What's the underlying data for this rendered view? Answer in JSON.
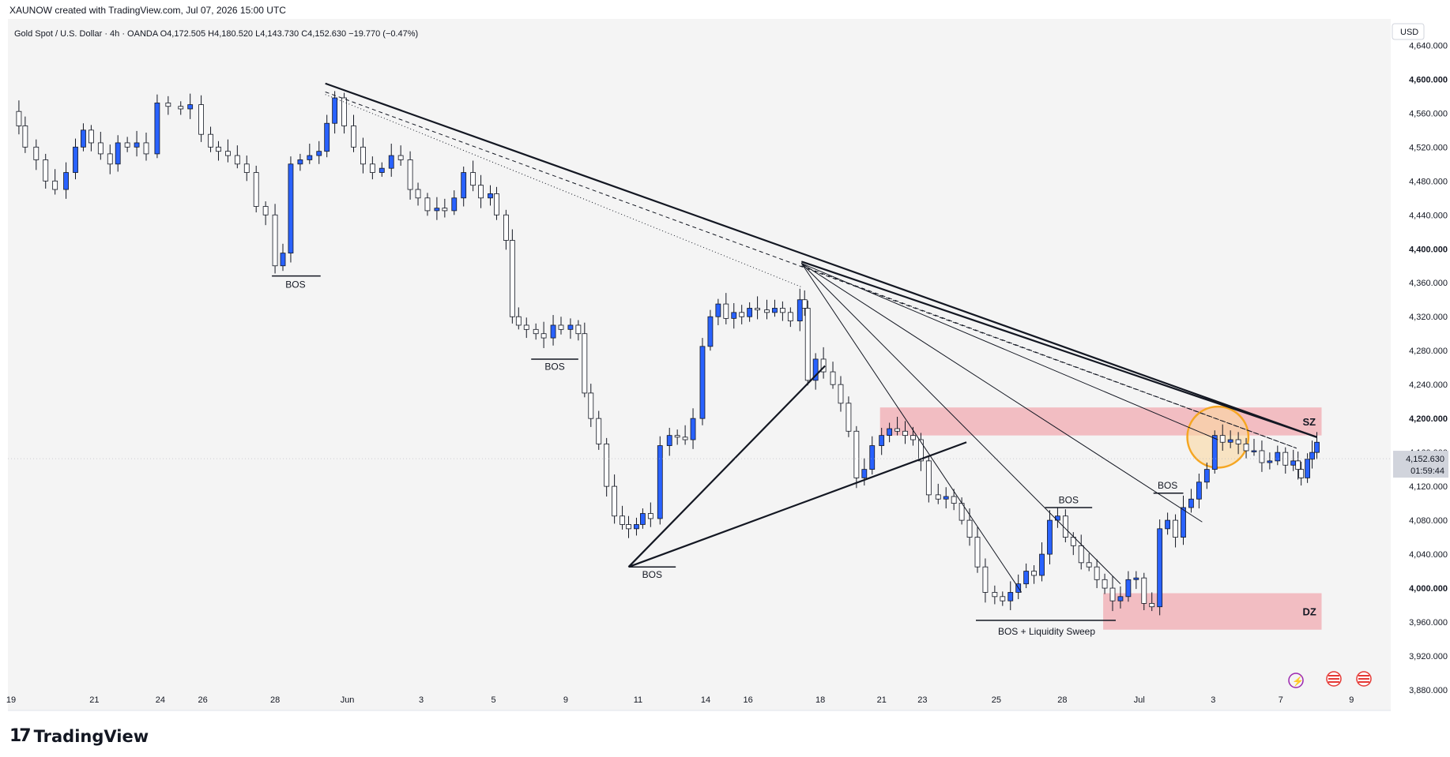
{
  "header": {
    "credit": "XAUNOW created with TradingView.com, Jul 07, 2026 15:00 UTC"
  },
  "footer": {
    "brand": "TradingView"
  },
  "chart_data": {
    "type": "candlestick",
    "symbol_line": "Gold Spot / U.S. Dollar · 4h · OANDA  O4,172.505  H4,180.520  L4,143.730  C4,152.630  −19.770 (−0.47%)",
    "currency": "USD",
    "open": 4172.505,
    "high": 4180.52,
    "low": 4143.73,
    "close": 4152.63,
    "change": -19.77,
    "change_pct": -0.47,
    "last_price_label": "4,152.630",
    "countdown": "01:59:44",
    "ylim": [
      3880,
      4645
    ],
    "y_ticks": [
      "4,640.000",
      "4,600.000",
      "4,560.000",
      "4,520.000",
      "4,480.000",
      "4,440.000",
      "4,400.000",
      "4,360.000",
      "4,320.000",
      "4,280.000",
      "4,240.000",
      "4,200.000",
      "4,160.000",
      "4,120.000",
      "4,080.000",
      "4,040.000",
      "4,000.000",
      "3,960.000",
      "3,920.000",
      "3,880.000"
    ],
    "y_tick_values": [
      4640,
      4600,
      4560,
      4520,
      4480,
      4440,
      4400,
      4360,
      4320,
      4280,
      4240,
      4200,
      4160,
      4120,
      4080,
      4040,
      4000,
      3960,
      3920,
      3880
    ],
    "x_range": [
      0,
      1760
    ],
    "x_ticks": [
      {
        "label": "19",
        "x": 0
      },
      {
        "label": "21",
        "x": 106
      },
      {
        "label": "24",
        "x": 190
      },
      {
        "label": "26",
        "x": 244
      },
      {
        "label": "28",
        "x": 336
      },
      {
        "label": "Jun",
        "x": 428
      },
      {
        "label": "3",
        "x": 522
      },
      {
        "label": "5",
        "x": 614
      },
      {
        "label": "9",
        "x": 706
      },
      {
        "label": "11",
        "x": 798
      },
      {
        "label": "14",
        "x": 884
      },
      {
        "label": "16",
        "x": 938
      },
      {
        "label": "18",
        "x": 1030
      },
      {
        "label": "21",
        "x": 1108
      },
      {
        "label": "23",
        "x": 1160
      },
      {
        "label": "25",
        "x": 1254
      },
      {
        "label": "28",
        "x": 1338
      },
      {
        "label": "Jul",
        "x": 1436
      },
      {
        "label": "3",
        "x": 1530
      },
      {
        "label": "7",
        "x": 1616
      },
      {
        "label": "9",
        "x": 1706
      }
    ],
    "price_path": [
      [
        0,
        4562
      ],
      [
        14,
        4545
      ],
      [
        22,
        4520
      ],
      [
        36,
        4505
      ],
      [
        48,
        4480
      ],
      [
        60,
        4470
      ],
      [
        74,
        4490
      ],
      [
        86,
        4520
      ],
      [
        96,
        4540
      ],
      [
        106,
        4525
      ],
      [
        118,
        4512
      ],
      [
        130,
        4500
      ],
      [
        140,
        4525
      ],
      [
        152,
        4520
      ],
      [
        164,
        4525
      ],
      [
        176,
        4512
      ],
      [
        190,
        4572
      ],
      [
        204,
        4568
      ],
      [
        220,
        4565
      ],
      [
        232,
        4570
      ],
      [
        246,
        4535
      ],
      [
        258,
        4520
      ],
      [
        268,
        4515
      ],
      [
        280,
        4510
      ],
      [
        292,
        4500
      ],
      [
        304,
        4490
      ],
      [
        316,
        4450
      ],
      [
        328,
        4440
      ],
      [
        340,
        4380
      ],
      [
        350,
        4395
      ],
      [
        360,
        4500
      ],
      [
        372,
        4505
      ],
      [
        384,
        4510
      ],
      [
        396,
        4515
      ],
      [
        406,
        4548
      ],
      [
        416,
        4578
      ],
      [
        428,
        4545
      ],
      [
        440,
        4520
      ],
      [
        452,
        4500
      ],
      [
        464,
        4490
      ],
      [
        476,
        4495
      ],
      [
        488,
        4510
      ],
      [
        500,
        4505
      ],
      [
        512,
        4470
      ],
      [
        522,
        4460
      ],
      [
        534,
        4445
      ],
      [
        546,
        4448
      ],
      [
        556,
        4445
      ],
      [
        568,
        4460
      ],
      [
        580,
        4490
      ],
      [
        592,
        4475
      ],
      [
        602,
        4460
      ],
      [
        614,
        4465
      ],
      [
        622,
        4440
      ],
      [
        634,
        4410
      ],
      [
        642,
        4320
      ],
      [
        650,
        4310
      ],
      [
        660,
        4305
      ],
      [
        672,
        4300
      ],
      [
        682,
        4295
      ],
      [
        694,
        4310
      ],
      [
        704,
        4305
      ],
      [
        716,
        4310
      ],
      [
        726,
        4300
      ],
      [
        734,
        4230
      ],
      [
        742,
        4200
      ],
      [
        752,
        4170
      ],
      [
        762,
        4120
      ],
      [
        772,
        4085
      ],
      [
        782,
        4075
      ],
      [
        790,
        4070
      ],
      [
        800,
        4075
      ],
      [
        808,
        4088
      ],
      [
        818,
        4082
      ],
      [
        830,
        4168
      ],
      [
        842,
        4180
      ],
      [
        852,
        4178
      ],
      [
        862,
        4175
      ],
      [
        872,
        4200
      ],
      [
        884,
        4285
      ],
      [
        894,
        4320
      ],
      [
        904,
        4335
      ],
      [
        914,
        4318
      ],
      [
        924,
        4325
      ],
      [
        934,
        4320
      ],
      [
        944,
        4330
      ],
      [
        954,
        4328
      ],
      [
        966,
        4325
      ],
      [
        976,
        4330
      ],
      [
        986,
        4325
      ],
      [
        996,
        4315
      ],
      [
        1008,
        4340
      ],
      [
        1014,
        4330
      ],
      [
        1018,
        4245
      ],
      [
        1028,
        4270
      ],
      [
        1038,
        4255
      ],
      [
        1050,
        4240
      ],
      [
        1060,
        4218
      ],
      [
        1070,
        4185
      ],
      [
        1080,
        4130
      ],
      [
        1090,
        4140
      ],
      [
        1100,
        4168
      ],
      [
        1112,
        4180
      ],
      [
        1122,
        4188
      ],
      [
        1132,
        4185
      ],
      [
        1142,
        4180
      ],
      [
        1152,
        4175
      ],
      [
        1162,
        4150
      ],
      [
        1172,
        4110
      ],
      [
        1184,
        4105
      ],
      [
        1194,
        4108
      ],
      [
        1204,
        4100
      ],
      [
        1214,
        4080
      ],
      [
        1224,
        4060
      ],
      [
        1234,
        4025
      ],
      [
        1244,
        3995
      ],
      [
        1256,
        3990
      ],
      [
        1266,
        3985
      ],
      [
        1276,
        3995
      ],
      [
        1286,
        4005
      ],
      [
        1296,
        4020
      ],
      [
        1306,
        4015
      ],
      [
        1316,
        4040
      ],
      [
        1326,
        4080
      ],
      [
        1336,
        4085
      ],
      [
        1346,
        4060
      ],
      [
        1356,
        4050
      ],
      [
        1366,
        4030
      ],
      [
        1376,
        4025
      ],
      [
        1386,
        4010
      ],
      [
        1396,
        4000
      ],
      [
        1406,
        3985
      ],
      [
        1416,
        3990
      ],
      [
        1426,
        4010
      ],
      [
        1436,
        4012
      ],
      [
        1446,
        3982
      ],
      [
        1456,
        3978
      ],
      [
        1466,
        4070
      ],
      [
        1476,
        4080
      ],
      [
        1486,
        4060
      ],
      [
        1496,
        4095
      ],
      [
        1506,
        4105
      ],
      [
        1516,
        4125
      ],
      [
        1526,
        4140
      ],
      [
        1536,
        4180
      ],
      [
        1546,
        4172
      ],
      [
        1556,
        4175
      ],
      [
        1566,
        4170
      ],
      [
        1576,
        4162
      ],
      [
        1586,
        4162
      ],
      [
        1596,
        4148
      ],
      [
        1606,
        4150
      ],
      [
        1616,
        4160
      ],
      [
        1626,
        4145
      ],
      [
        1636,
        4150
      ],
      [
        1642,
        4140
      ],
      [
        1646,
        4130
      ],
      [
        1654,
        4152
      ],
      [
        1660,
        4160
      ],
      [
        1666,
        4172
      ]
    ],
    "lines": [
      {
        "kind": "trendline",
        "style": "thick",
        "from": [
          404,
          4595
        ],
        "to": [
          1666,
          4178
        ]
      },
      {
        "kind": "trendline",
        "style": "dashed",
        "from": [
          404,
          4585
        ],
        "to": [
          1640,
          4165
        ]
      },
      {
        "kind": "trendline",
        "style": "dotted",
        "from": [
          404,
          4582
        ],
        "to": [
          1010,
          4355
        ]
      },
      {
        "kind": "trendline",
        "style": "thick",
        "from": [
          1010,
          4385
        ],
        "to": [
          1666,
          4178
        ]
      },
      {
        "kind": "trendline",
        "style": "dashed",
        "from": [
          1010,
          4380
        ],
        "to": [
          1640,
          4165
        ]
      },
      {
        "kind": "trendline",
        "style": "thin",
        "from": [
          1010,
          4383
        ],
        "to": [
          1540,
          4175
        ]
      },
      {
        "kind": "trendline",
        "style": "thin",
        "from": [
          1010,
          4383
        ],
        "to": [
          1520,
          4078
        ]
      },
      {
        "kind": "trendline",
        "style": "thin",
        "from": [
          1010,
          4383
        ],
        "to": [
          1416,
          4005
        ]
      },
      {
        "kind": "trendline",
        "style": "thin",
        "from": [
          1010,
          4383
        ],
        "to": [
          1290,
          3995
        ]
      },
      {
        "kind": "trendline",
        "style": "thick",
        "from": [
          790,
          4025
        ],
        "to": [
          1040,
          4262
        ]
      },
      {
        "kind": "trendline",
        "style": "thick",
        "from": [
          790,
          4025
        ],
        "to": [
          1220,
          4172
        ]
      },
      {
        "kind": "level",
        "from": [
          336,
          4368
        ],
        "to": [
          398,
          4368
        ]
      },
      {
        "kind": "level",
        "from": [
          666,
          4270
        ],
        "to": [
          726,
          4270
        ]
      },
      {
        "kind": "level",
        "from": [
          790,
          4025
        ],
        "to": [
          850,
          4025
        ]
      },
      {
        "kind": "level",
        "from": [
          1232,
          3962
        ],
        "to": [
          1410,
          3962
        ]
      },
      {
        "kind": "level",
        "from": [
          1320,
          4095
        ],
        "to": [
          1380,
          4095
        ]
      },
      {
        "kind": "level",
        "from": [
          1458,
          4112
        ],
        "to": [
          1496,
          4112
        ]
      }
    ],
    "zones": [
      {
        "label": "SZ",
        "x1": 1110,
        "x2": 1672,
        "y_top": 4213,
        "y_bottom": 4180,
        "color": "#f2b7bc"
      },
      {
        "label": "DZ",
        "x1": 1394,
        "x2": 1672,
        "y_top": 3994,
        "y_bottom": 3951,
        "color": "#f2b7bc"
      }
    ],
    "annotations": [
      {
        "text": "BOS",
        "x": 366,
        "y": 4358
      },
      {
        "text": "BOS",
        "x": 696,
        "y": 4261
      },
      {
        "text": "BOS",
        "x": 820,
        "y": 4016
      },
      {
        "text": "BOS",
        "x": 1350,
        "y": 4104
      },
      {
        "text": "BOS",
        "x": 1476,
        "y": 4121
      },
      {
        "text": "BOS + Liquidity Sweep",
        "x": 1322,
        "y": 3949
      }
    ],
    "highlight_circle": {
      "cx": 1540,
      "cy": 4178,
      "r_price": 36,
      "color": "#f5a623"
    },
    "colors": {
      "up": "#2962ff",
      "down": "#ffffff",
      "wick": "#131722",
      "background": "#f4f4f4",
      "zone": "#f2b7bc"
    }
  }
}
